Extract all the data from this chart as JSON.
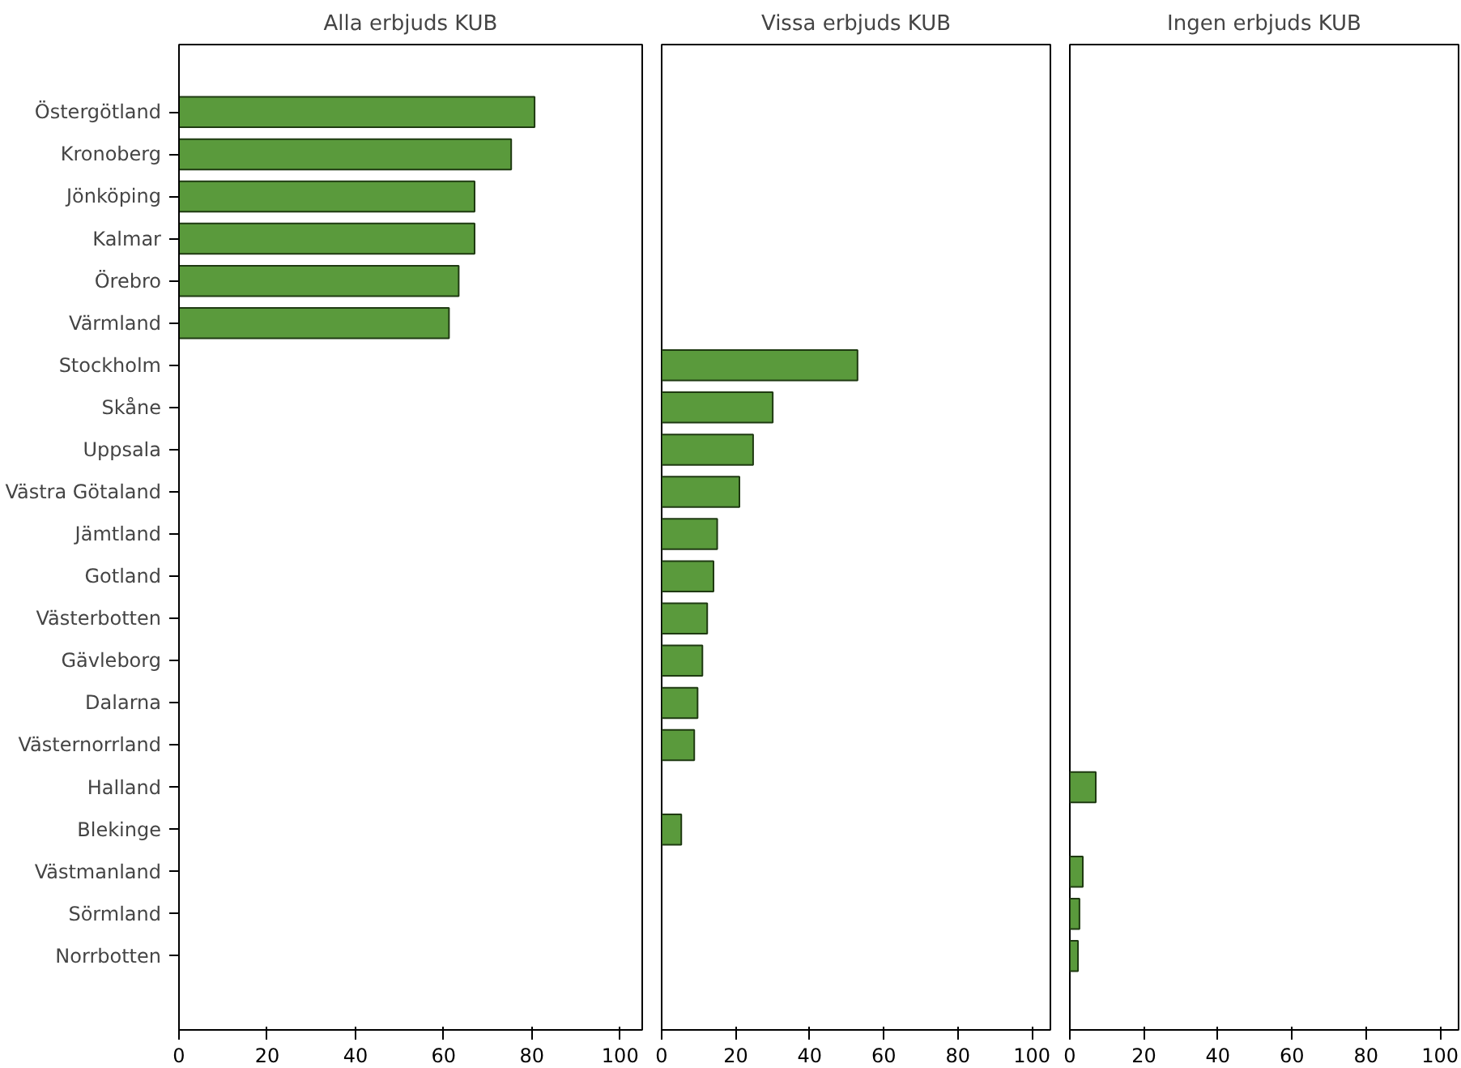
{
  "chart_data": [
    {
      "type": "bar",
      "orientation": "horizontal",
      "title": "Alla erbjuds KUB",
      "categories": [
        "Östergötland",
        "Kronoberg",
        "Jönköping",
        "Kalmar",
        "Örebro",
        "Värmland",
        "Stockholm",
        "Skåne",
        "Uppsala",
        "Västra Götaland",
        "Jämtland",
        "Gotland",
        "Västerbotten",
        "Gävleborg",
        "Dalarna",
        "Västernorrland",
        "Halland",
        "Blekinge",
        "Västmanland",
        "Sörmland",
        "Norrbotten"
      ],
      "values": [
        80.6,
        75.3,
        67,
        67,
        63.4,
        61.2,
        null,
        null,
        null,
        null,
        null,
        null,
        null,
        null,
        null,
        null,
        null,
        null,
        null,
        null,
        null
      ],
      "color": "#5a9a3c",
      "xlim": [
        0,
        105
      ],
      "xticks": [
        0,
        20,
        40,
        60,
        80,
        100
      ]
    },
    {
      "type": "bar",
      "orientation": "horizontal",
      "title": "Vissa erbjuds KUB",
      "categories": [
        null,
        null,
        null,
        null,
        null,
        null,
        null,
        null,
        null,
        null,
        null,
        null,
        null,
        null,
        null,
        null,
        null,
        null,
        null,
        null,
        null
      ],
      "values": [
        null,
        null,
        null,
        null,
        null,
        null,
        52.9,
        30,
        24.7,
        21,
        15,
        14,
        12.3,
        11,
        9.7,
        8.8,
        null,
        5.3,
        null,
        null,
        null
      ],
      "color": "#5a9a3c",
      "xlim": [
        0,
        105
      ],
      "xticks": [
        0,
        20,
        40,
        60,
        80,
        100
      ],
      "tick_labels": "x"
    },
    {
      "type": "bar",
      "orientation": "horizontal",
      "title": "Ingen erbjuds KUB",
      "categories": [
        null,
        null,
        null,
        null,
        null,
        null,
        null,
        null,
        null,
        null,
        null,
        null,
        null,
        null,
        null,
        null,
        null,
        null,
        null,
        null,
        null
      ],
      "values": [
        null,
        null,
        null,
        null,
        null,
        null,
        null,
        null,
        null,
        null,
        null,
        null,
        null,
        null,
        null,
        null,
        7,
        null,
        3.5,
        2.6,
        2.2
      ],
      "color": "#5a9a3c",
      "xlim": [
        0,
        105
      ],
      "xticks": [
        0,
        20,
        40,
        60,
        80,
        100
      ],
      "tick_labels": "x"
    }
  ]
}
